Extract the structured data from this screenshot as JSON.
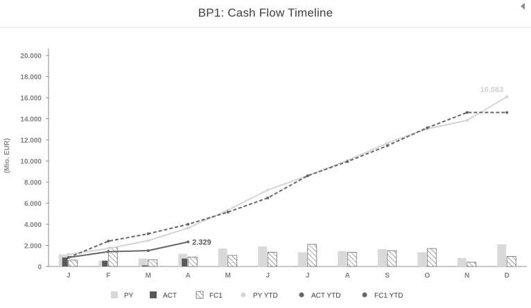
{
  "header": {
    "title": "BP1: Cash Flow Timeline"
  },
  "chart_data": {
    "type": "bar",
    "title": "BP1: Cash Flow Timeline",
    "ylabel": "(Mio. EUR)",
    "xlabel": "",
    "categories": [
      "J",
      "F",
      "M",
      "A",
      "M",
      "J",
      "J",
      "A",
      "S",
      "O",
      "N",
      "D"
    ],
    "ylim": [
      0,
      21000
    ],
    "yticks": [
      0,
      2000,
      4000,
      6000,
      8000,
      10000,
      12000,
      14000,
      16000,
      18000,
      20000
    ],
    "ytick_labels": [
      "0",
      "2.000",
      "4.000",
      "6.000",
      "8.000",
      "10.000",
      "12.000",
      "14.000",
      "16.000",
      "18.000",
      "20.000"
    ],
    "grid": false,
    "legend_position": "bottom",
    "series": [
      {
        "name": "PY",
        "kind": "bar",
        "color": "#d9d9d9",
        "values": [
          1150,
          550,
          750,
          1200,
          1700,
          1900,
          1350,
          1450,
          1650,
          1350,
          800,
          2100
        ]
      },
      {
        "name": "ACT",
        "kind": "bar",
        "color": "#595959",
        "values": [
          850,
          550,
          100,
          750,
          null,
          null,
          null,
          null,
          null,
          null,
          null,
          null
        ]
      },
      {
        "name": "FC1",
        "kind": "bar",
        "pattern": "hatch",
        "color": "#595959",
        "values": [
          600,
          1800,
          650,
          900,
          1050,
          1350,
          2100,
          1350,
          1500,
          1700,
          400,
          950
        ]
      },
      {
        "name": "PY YTD",
        "kind": "line",
        "color": "#d4d4d4",
        "values": [
          1150,
          1700,
          2450,
          3650,
          5350,
          7250,
          8600,
          10050,
          11700,
          13050,
          13850,
          16083
        ],
        "label": "16.083"
      },
      {
        "name": "ACT YTD",
        "kind": "line",
        "color": "#666666",
        "values": [
          850,
          1400,
          1500,
          2329,
          null,
          null,
          null,
          null,
          null,
          null,
          null,
          null
        ],
        "label": "2.329"
      },
      {
        "name": "FC1 YTD",
        "kind": "line",
        "dashed": true,
        "color": "#666666",
        "values": [
          850,
          2400,
          3100,
          4000,
          5150,
          6500,
          8600,
          9950,
          11450,
          13150,
          14600,
          14600
        ]
      }
    ]
  }
}
